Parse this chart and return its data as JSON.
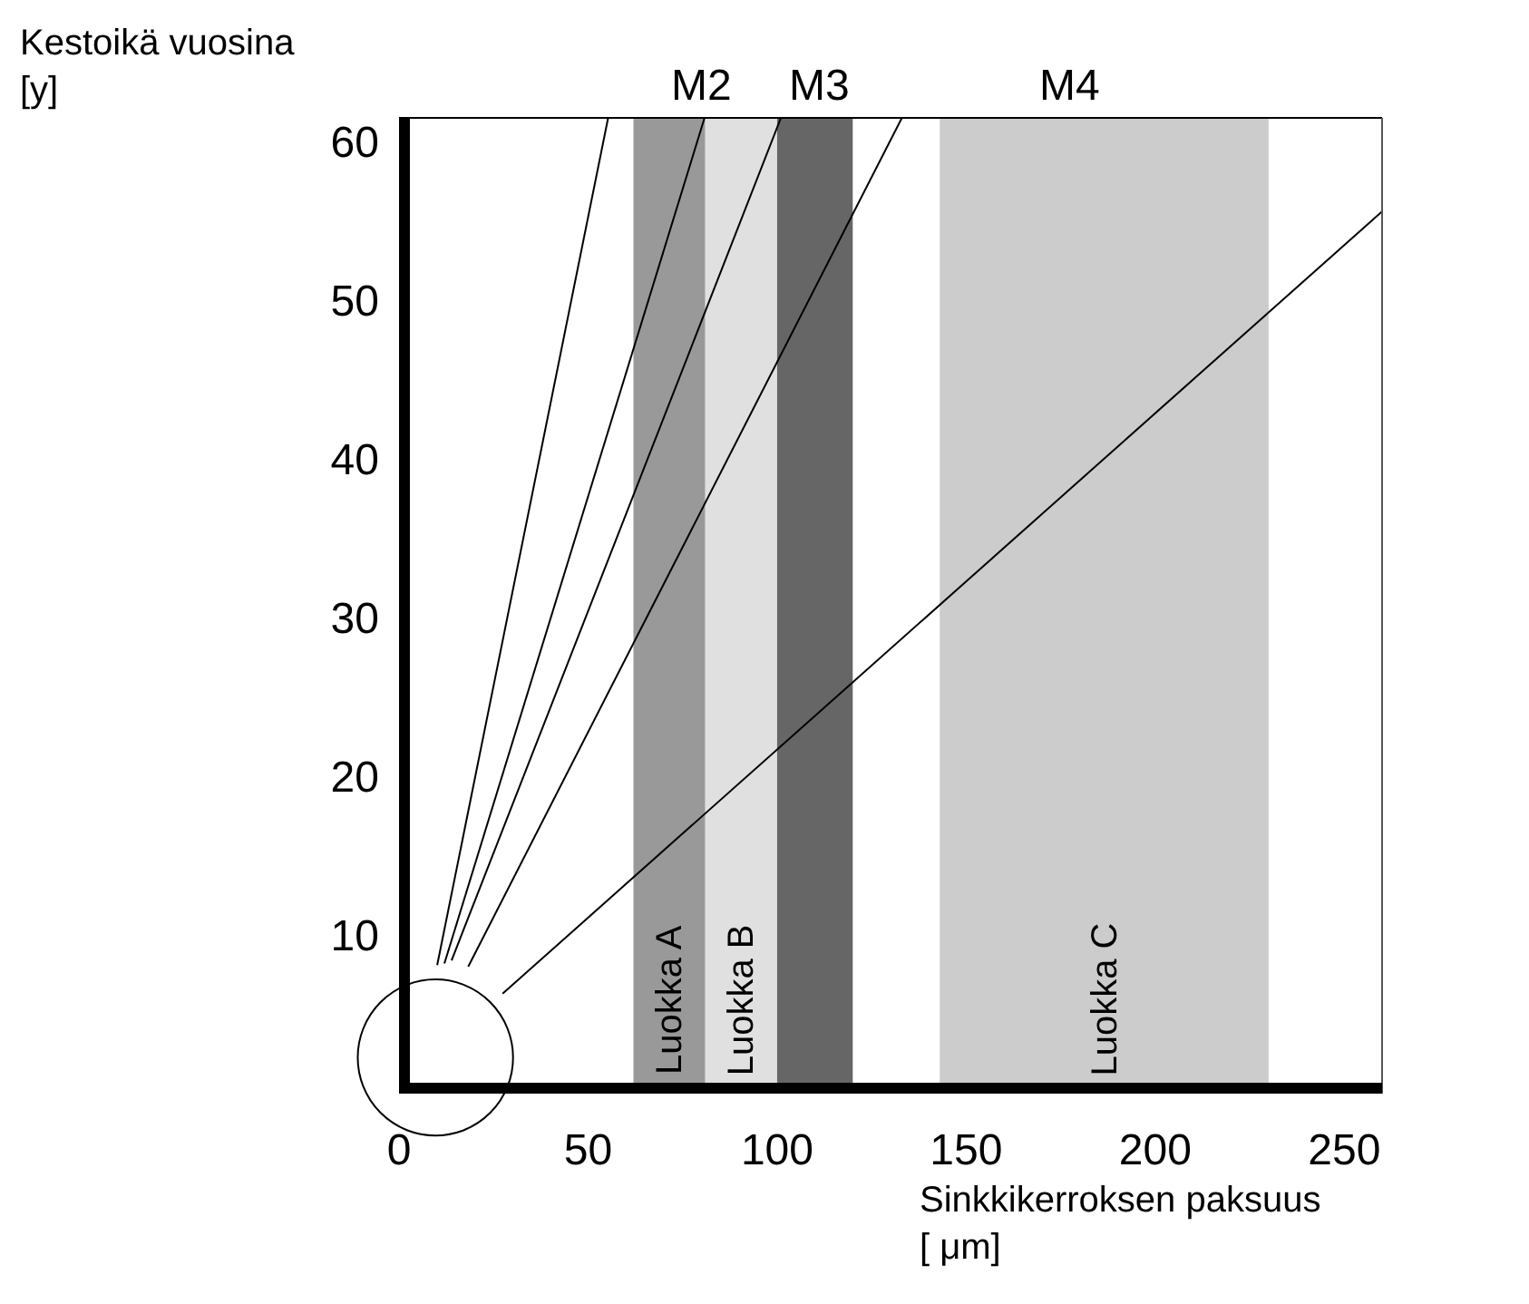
{
  "chart_data": {
    "type": "line",
    "xlabel": "Sinkkikerroksen paksuus\n[ μm]",
    "ylabel": "Kestoikä vuosina\n[y]",
    "xlim": [
      0,
      260
    ],
    "ylim": [
      0,
      61.5
    ],
    "xticks": [
      0,
      50,
      100,
      150,
      200,
      250
    ],
    "yticks": [
      10,
      20,
      30,
      40,
      50,
      60
    ],
    "grid": false,
    "marker": "none",
    "line_style": "solid",
    "series": [
      {
        "color": "#000000",
        "x": [
          27.4,
          260
        ],
        "values": [
          6.3,
          55.6
        ]
      },
      {
        "color": "#000000",
        "x": [
          18.3,
          133
        ],
        "values": [
          8.0,
          61.5
        ]
      },
      {
        "color": "#000000",
        "x": [
          13.9,
          101
        ],
        "values": [
          8.4,
          61.5
        ]
      },
      {
        "color": "#000000",
        "x": [
          12,
          80.8
        ],
        "values": [
          8.2,
          61.5
        ]
      },
      {
        "color": "#000000",
        "x": [
          10.1,
          55.3
        ],
        "values": [
          8.1,
          61.5
        ]
      }
    ],
    "bands": [
      {
        "axis": "x",
        "from": 62,
        "to": 81,
        "label": "Luokka A",
        "color": "#999999"
      },
      {
        "axis": "x",
        "from": 81,
        "to": 100,
        "label": "Luokka B",
        "color": "#e0e0e0"
      },
      {
        "axis": "x",
        "from": 100,
        "to": 120,
        "label": null,
        "color": "#666666"
      },
      {
        "axis": "x",
        "from": 143,
        "to": 230,
        "label": "Luokka C",
        "color": "#cccccc"
      }
    ],
    "annotations": [
      "M2",
      "M3",
      "M4"
    ]
  }
}
